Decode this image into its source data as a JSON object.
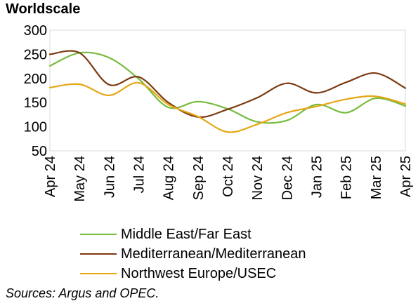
{
  "chart_data": {
    "type": "line",
    "title": "Worldscale",
    "xlabel": "",
    "ylabel": "",
    "ylim": [
      50,
      300
    ],
    "yticks": [
      50,
      100,
      150,
      200,
      250,
      300
    ],
    "grid": false,
    "legend_position": "bottom",
    "categories": [
      "Apr 24",
      "May 24",
      "Jun 24",
      "Jul 24",
      "Aug 24",
      "Sep 24",
      "Oct 24",
      "Nov 24",
      "Dec 24",
      "Jan 25",
      "Feb 25",
      "Mar 25",
      "Apr 25"
    ],
    "series": [
      {
        "name": "Middle East/Far East",
        "color": "#77bd3c",
        "values": [
          226,
          253,
          243,
          199,
          140,
          152,
          137,
          110,
          113,
          146,
          129,
          159,
          143
        ]
      },
      {
        "name": "Mediterranean/Mediterranean",
        "color": "#7c3b12",
        "values": [
          250,
          253,
          187,
          203,
          150,
          120,
          136,
          160,
          190,
          170,
          192,
          211,
          180
        ]
      },
      {
        "name": "Northwest Europe/USEC",
        "color": "#e6a614",
        "values": [
          181,
          188,
          165,
          191,
          146,
          121,
          89,
          105,
          129,
          142,
          157,
          163,
          147
        ]
      }
    ]
  },
  "source_note": "Sources: Argus and OPEC."
}
